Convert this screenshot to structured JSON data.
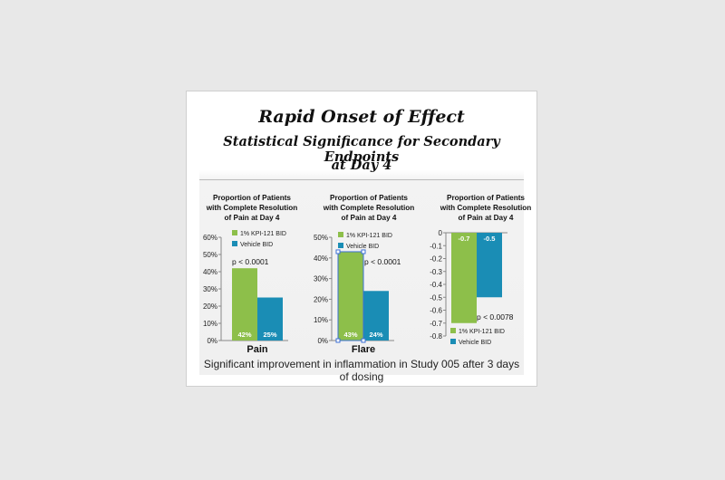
{
  "title": "Rapid Onset of Effect",
  "subtitle_line1": "Statistical Significance for Secondary Endpoints",
  "subtitle_line2": "at Day 4",
  "footnote": "Significant improvement in inflammation in Study 005 after 3 days of dosing",
  "colors": {
    "kpi": "#8dbf4a",
    "vehicle": "#1a8db5"
  },
  "chart_data": [
    {
      "type": "bar",
      "title": [
        "Proportion of Patients",
        "with Complete Resolution",
        "of Pain at Day 4"
      ],
      "categories": [
        "Pain"
      ],
      "series": [
        {
          "name": "1% KPI-121 BID",
          "values": [
            42
          ],
          "labels": [
            "42%"
          ]
        },
        {
          "name": "Vehicle BID",
          "values": [
            25
          ],
          "labels": [
            "25%"
          ]
        }
      ],
      "ylim": [
        0,
        60
      ],
      "yticks": [
        "0%",
        "10%",
        "20%",
        "30%",
        "40%",
        "50%",
        "60%"
      ],
      "annotation": "p < 0.0001",
      "legend_position": "top"
    },
    {
      "type": "bar",
      "title": [
        "Proportion of Patients",
        "with Complete Resolution",
        "of Pain at Day 4"
      ],
      "categories": [
        "Flare"
      ],
      "series": [
        {
          "name": "1% KPI-121 BID",
          "values": [
            43
          ],
          "labels": [
            "43%"
          ]
        },
        {
          "name": "Vehicle BID",
          "values": [
            24
          ],
          "labels": [
            "24%"
          ]
        }
      ],
      "ylim": [
        0,
        50
      ],
      "yticks": [
        "0%",
        "10%",
        "20%",
        "30%",
        "40%",
        "50%"
      ],
      "annotation": "p < 0.0001",
      "legend_position": "top"
    },
    {
      "type": "bar",
      "title": [
        "Proportion of Patients",
        "with Complete Resolution",
        "of Pain at Day 4"
      ],
      "categories": [
        ""
      ],
      "series": [
        {
          "name": "1% KPI-121 BID",
          "values": [
            -0.7
          ],
          "labels": [
            "-0.7"
          ]
        },
        {
          "name": "Vehicle BID",
          "values": [
            -0.5
          ],
          "labels": [
            "-0.5"
          ]
        }
      ],
      "ylim": [
        -0.8,
        0
      ],
      "yticks": [
        "0",
        "-0.1",
        "-0.2",
        "-0.3",
        "-0.4",
        "-0.5",
        "-0.6",
        "-0.7",
        "-0.8"
      ],
      "annotation": "p < 0.0078",
      "legend_position": "bottom"
    }
  ]
}
